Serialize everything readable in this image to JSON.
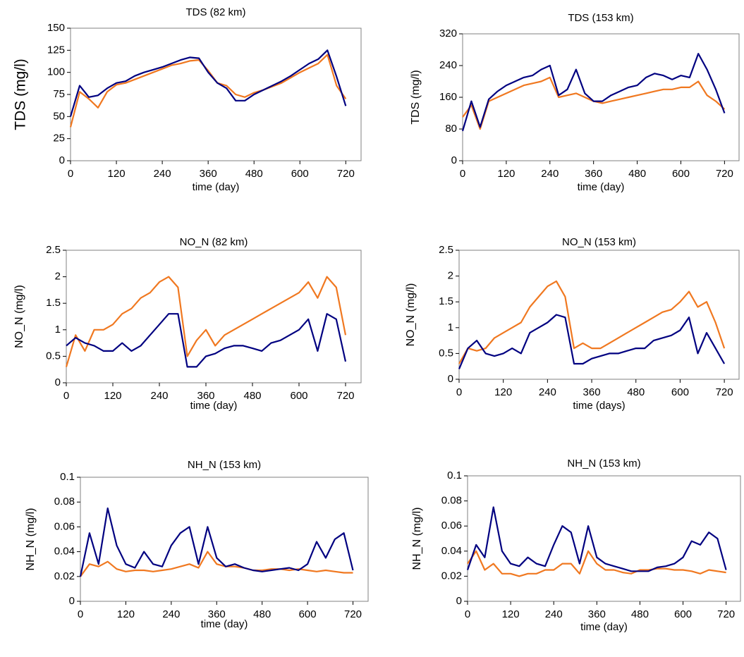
{
  "chart_data": [
    {
      "type": "line",
      "title": "TDS (82 km)",
      "x_label": "time (day)",
      "y_label": "TDS (mg/l)",
      "x": [
        0,
        24,
        48,
        72,
        96,
        120,
        144,
        168,
        192,
        216,
        240,
        264,
        288,
        312,
        336,
        360,
        384,
        408,
        432,
        456,
        480,
        504,
        528,
        552,
        576,
        600,
        624,
        648,
        672,
        696,
        720
      ],
      "series": [
        {
          "color": "#f07820",
          "values": [
            38,
            78,
            70,
            60,
            78,
            86,
            88,
            92,
            96,
            100,
            104,
            108,
            110,
            113,
            114,
            102,
            88,
            85,
            75,
            72,
            77,
            80,
            84,
            88,
            94,
            100,
            105,
            110,
            120,
            85,
            70
          ]
        },
        {
          "color": "#000080",
          "values": [
            50,
            85,
            72,
            74,
            82,
            88,
            90,
            96,
            100,
            103,
            106,
            110,
            114,
            117,
            116,
            100,
            88,
            82,
            68,
            68,
            75,
            80,
            85,
            90,
            96,
            103,
            110,
            115,
            125,
            95,
            62
          ]
        }
      ],
      "xlim": [
        0,
        760
      ],
      "ylim": [
        0,
        150
      ],
      "xticks": [
        0,
        120,
        240,
        360,
        480,
        600,
        720
      ],
      "yticks": [
        0,
        25,
        50,
        75,
        100,
        125,
        150
      ]
    },
    {
      "type": "line",
      "title": "TDS (153  km)",
      "x_label": "time (day)",
      "y_label": "TDS  (mg/l)",
      "x": [
        0,
        24,
        48,
        72,
        96,
        120,
        144,
        168,
        192,
        216,
        240,
        264,
        288,
        312,
        336,
        360,
        384,
        408,
        432,
        456,
        480,
        504,
        528,
        552,
        576,
        600,
        624,
        648,
        672,
        696,
        720
      ],
      "series": [
        {
          "color": "#f07820",
          "values": [
            110,
            140,
            80,
            150,
            160,
            170,
            180,
            190,
            195,
            200,
            210,
            160,
            165,
            170,
            160,
            150,
            145,
            150,
            155,
            160,
            165,
            170,
            175,
            180,
            180,
            185,
            185,
            200,
            165,
            150,
            130
          ]
        },
        {
          "color": "#000080",
          "values": [
            75,
            150,
            85,
            155,
            175,
            190,
            200,
            210,
            215,
            230,
            240,
            165,
            180,
            230,
            170,
            150,
            150,
            165,
            175,
            185,
            190,
            210,
            220,
            215,
            205,
            215,
            210,
            270,
            230,
            180,
            120
          ]
        }
      ],
      "xlim": [
        0,
        760
      ],
      "ylim": [
        0,
        320
      ],
      "xticks": [
        0,
        120,
        240,
        360,
        480,
        600,
        720
      ],
      "yticks": [
        0,
        80,
        160,
        240,
        320
      ]
    },
    {
      "type": "line",
      "title": "NO_N (82 km)",
      "x_label": "time (day)",
      "y_label": "NO_N (mg/l)",
      "x": [
        0,
        24,
        48,
        72,
        96,
        120,
        144,
        168,
        192,
        216,
        240,
        264,
        288,
        312,
        336,
        360,
        384,
        408,
        432,
        456,
        480,
        504,
        528,
        552,
        576,
        600,
        624,
        648,
        672,
        696,
        720
      ],
      "series": [
        {
          "color": "#f07820",
          "values": [
            0.3,
            0.9,
            0.6,
            1.0,
            1.0,
            1.1,
            1.3,
            1.4,
            1.6,
            1.7,
            1.9,
            2.0,
            1.8,
            0.5,
            0.8,
            1.0,
            0.7,
            0.9,
            1.0,
            1.1,
            1.2,
            1.3,
            1.4,
            1.5,
            1.6,
            1.7,
            1.9,
            1.6,
            2.0,
            1.8,
            0.9
          ]
        },
        {
          "color": "#000080",
          "values": [
            0.7,
            0.85,
            0.75,
            0.7,
            0.6,
            0.6,
            0.75,
            0.6,
            0.7,
            0.9,
            1.1,
            1.3,
            1.3,
            0.3,
            0.3,
            0.5,
            0.55,
            0.65,
            0.7,
            0.7,
            0.65,
            0.6,
            0.75,
            0.8,
            0.9,
            1.0,
            1.2,
            0.6,
            1.3,
            1.2,
            0.4
          ]
        }
      ],
      "xlim": [
        0,
        760
      ],
      "ylim": [
        0,
        2.5
      ],
      "xticks": [
        0,
        120,
        240,
        360,
        480,
        600,
        720
      ],
      "yticks": [
        0,
        0.5,
        1,
        1.5,
        2,
        2.5
      ]
    },
    {
      "type": "line",
      "title": "NO_N (153 km)",
      "x_label": "time (days)",
      "y_label": "NO_N  (mg/l)",
      "x": [
        0,
        24,
        48,
        72,
        96,
        120,
        144,
        168,
        192,
        216,
        240,
        264,
        288,
        312,
        336,
        360,
        384,
        408,
        432,
        456,
        480,
        504,
        528,
        552,
        576,
        600,
        624,
        648,
        672,
        696,
        720
      ],
      "series": [
        {
          "color": "#f07820",
          "values": [
            0.3,
            0.6,
            0.55,
            0.6,
            0.8,
            0.9,
            1.0,
            1.1,
            1.4,
            1.6,
            1.8,
            1.9,
            1.6,
            0.6,
            0.7,
            0.6,
            0.6,
            0.7,
            0.8,
            0.9,
            1.0,
            1.1,
            1.2,
            1.3,
            1.35,
            1.5,
            1.7,
            1.4,
            1.5,
            1.1,
            0.6
          ]
        },
        {
          "color": "#000080",
          "values": [
            0.2,
            0.6,
            0.75,
            0.5,
            0.45,
            0.5,
            0.6,
            0.5,
            0.9,
            1.0,
            1.1,
            1.25,
            1.2,
            0.3,
            0.3,
            0.4,
            0.45,
            0.5,
            0.5,
            0.55,
            0.6,
            0.6,
            0.75,
            0.8,
            0.85,
            0.95,
            1.2,
            0.5,
            0.9,
            0.6,
            0.3
          ]
        }
      ],
      "xlim": [
        0,
        760
      ],
      "ylim": [
        0,
        2.5
      ],
      "xticks": [
        0,
        120,
        240,
        360,
        480,
        600,
        720
      ],
      "yticks": [
        0,
        0.5,
        1,
        1.5,
        2,
        2.5
      ]
    },
    {
      "type": "line",
      "title": "NH_N (153  km)",
      "x_label": "time (day)",
      "y_label": "NH_N (mg/l)",
      "x": [
        0,
        24,
        48,
        72,
        96,
        120,
        144,
        168,
        192,
        216,
        240,
        264,
        288,
        312,
        336,
        360,
        384,
        408,
        432,
        456,
        480,
        504,
        528,
        552,
        576,
        600,
        624,
        648,
        672,
        696,
        720
      ],
      "series": [
        {
          "color": "#f07820",
          "values": [
            0.02,
            0.03,
            0.028,
            0.032,
            0.026,
            0.024,
            0.025,
            0.025,
            0.024,
            0.025,
            0.026,
            0.028,
            0.03,
            0.027,
            0.04,
            0.03,
            0.028,
            0.028,
            0.027,
            0.025,
            0.025,
            0.026,
            0.026,
            0.025,
            0.026,
            0.025,
            0.024,
            0.025,
            0.024,
            0.023,
            0.023
          ]
        },
        {
          "color": "#000080",
          "values": [
            0.02,
            0.055,
            0.03,
            0.075,
            0.045,
            0.03,
            0.027,
            0.04,
            0.03,
            0.028,
            0.045,
            0.055,
            0.06,
            0.03,
            0.06,
            0.035,
            0.028,
            0.03,
            0.027,
            0.025,
            0.024,
            0.025,
            0.026,
            0.027,
            0.025,
            0.03,
            0.048,
            0.035,
            0.05,
            0.055,
            0.025
          ]
        }
      ],
      "xlim": [
        0,
        760
      ],
      "ylim": [
        0,
        0.1
      ],
      "xticks": [
        0,
        120,
        240,
        360,
        480,
        600,
        720
      ],
      "yticks": [
        0,
        0.02,
        0.04,
        0.06,
        0.08,
        0.1
      ]
    },
    {
      "type": "line",
      "title": "NH_N (153  km)",
      "x_label": "time (day)",
      "y_label": "NH_N (mg/l)",
      "x": [
        0,
        24,
        48,
        72,
        96,
        120,
        144,
        168,
        192,
        216,
        240,
        264,
        288,
        312,
        336,
        360,
        384,
        408,
        432,
        456,
        480,
        504,
        528,
        552,
        576,
        600,
        624,
        648,
        672,
        696,
        720
      ],
      "series": [
        {
          "color": "#f07820",
          "values": [
            0.03,
            0.04,
            0.025,
            0.03,
            0.022,
            0.022,
            0.02,
            0.022,
            0.022,
            0.025,
            0.025,
            0.03,
            0.03,
            0.022,
            0.04,
            0.03,
            0.025,
            0.025,
            0.023,
            0.022,
            0.025,
            0.025,
            0.026,
            0.026,
            0.025,
            0.025,
            0.024,
            0.022,
            0.025,
            0.024,
            0.023
          ]
        },
        {
          "color": "#000080",
          "values": [
            0.025,
            0.045,
            0.035,
            0.075,
            0.04,
            0.03,
            0.028,
            0.035,
            0.03,
            0.028,
            0.045,
            0.06,
            0.055,
            0.03,
            0.06,
            0.035,
            0.03,
            0.028,
            0.026,
            0.024,
            0.024,
            0.024,
            0.027,
            0.028,
            0.03,
            0.035,
            0.048,
            0.045,
            0.055,
            0.05,
            0.025
          ]
        }
      ],
      "xlim": [
        0,
        760
      ],
      "ylim": [
        0,
        0.1
      ],
      "xticks": [
        0,
        120,
        240,
        360,
        480,
        600,
        720
      ],
      "yticks": [
        0,
        0.02,
        0.04,
        0.06,
        0.08,
        0.1
      ]
    }
  ]
}
